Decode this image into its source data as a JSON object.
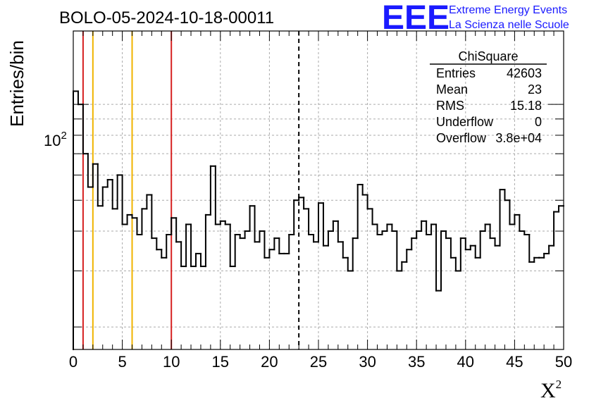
{
  "header": {
    "title": "BOLO-05-2024-10-18-00011",
    "logo_text": "EEE",
    "logo_line1": "Extreme Energy Events",
    "logo_line2": "La Scienza nelle Scuole"
  },
  "stats_box": {
    "name": "ChiSquare",
    "rows": [
      {
        "label": "Entries",
        "value": "42603"
      },
      {
        "label": "Mean",
        "value": "23"
      },
      {
        "label": "RMS",
        "value": "15.18"
      },
      {
        "label": "Underflow",
        "value": "0"
      },
      {
        "label": "Overflow",
        "value": "3.8e+04"
      }
    ]
  },
  "colors": {
    "histogram": "#000000",
    "red_lines": "#d62020",
    "yellow_lines": "#f0b400",
    "grid": "#aaaaaa",
    "logo": "#1a1aff"
  },
  "chart_data": {
    "type": "histogram",
    "xlabel": "X",
    "xlabel_superscript": "2",
    "ylabel": "Entries/bin",
    "xlim": [
      0,
      50
    ],
    "ylim": [
      17,
      170
    ],
    "log_y": true,
    "grid": true,
    "x_ticks": [
      "0",
      "5",
      "10",
      "15",
      "20",
      "25",
      "30",
      "35",
      "40",
      "45",
      "50"
    ],
    "y_tick_base": "10",
    "y_tick_exponent": "2",
    "bin_width": 0.5,
    "values": [
      110,
      100,
      70,
      55,
      65,
      48,
      55,
      58,
      47,
      60,
      42,
      45,
      44,
      39,
      47,
      52,
      38,
      35,
      33,
      39,
      44,
      37,
      31,
      42,
      31,
      34,
      31,
      45,
      64,
      42,
      43,
      42,
      31,
      39,
      38,
      40,
      48,
      37,
      40,
      33,
      35,
      38,
      34,
      34,
      39,
      50,
      51,
      47,
      39,
      37,
      49,
      36,
      40,
      43,
      37,
      33,
      30,
      38,
      56,
      52,
      47,
      42,
      39,
      40,
      42,
      40,
      30,
      32,
      35,
      38,
      40,
      43,
      39,
      42,
      26,
      40,
      38,
      33,
      30,
      38,
      35,
      36,
      33,
      40,
      42,
      38,
      36,
      54,
      50,
      42,
      45,
      40,
      39,
      32,
      33,
      33,
      34,
      36,
      46,
      48
    ],
    "vertical_lines": [
      {
        "x": 1,
        "color": "red",
        "style": "solid"
      },
      {
        "x": 2,
        "color": "yellow",
        "style": "solid"
      },
      {
        "x": 6,
        "color": "yellow",
        "style": "solid"
      },
      {
        "x": 10,
        "color": "red",
        "style": "solid"
      },
      {
        "x": 23,
        "color": "black",
        "style": "dashed"
      }
    ]
  }
}
